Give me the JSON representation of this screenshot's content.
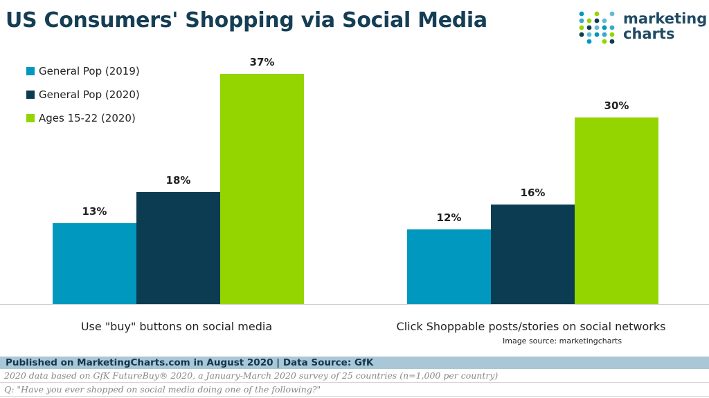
{
  "title": "US Consumers' Shopping via Social Media",
  "logo": {
    "line1": "marketing",
    "line2": "charts"
  },
  "colors": {
    "gp2019": "#0098be",
    "gp2020": "#0b3c52",
    "youth2020": "#94d500"
  },
  "legend": [
    {
      "label": "General Pop (2019)",
      "color": "#0098be"
    },
    {
      "label": "General Pop (2020)",
      "color": "#0b3c52"
    },
    {
      "label": "Ages 15-22 (2020)",
      "color": "#94d500"
    }
  ],
  "chart_data": {
    "type": "bar",
    "title": "US Consumers' Shopping via Social Media",
    "categories": [
      "Use \"buy\" buttons on social media",
      "Click Shoppable posts/stories on social networks"
    ],
    "series": [
      {
        "name": "General Pop (2019)",
        "values": [
          13,
          12
        ],
        "labels": [
          "13%",
          "12%"
        ]
      },
      {
        "name": "General Pop (2020)",
        "values": [
          18,
          16
        ],
        "labels": [
          "18%",
          "16%"
        ]
      },
      {
        "name": "Ages 15-22 (2020)",
        "values": [
          37,
          30
        ],
        "labels": [
          "37%",
          "30%"
        ]
      }
    ],
    "value_unit": "%",
    "legend_position": "top-left",
    "grid": false
  },
  "image_source": "Image source: marketingcharts",
  "footer": {
    "published": "Published on MarketingCharts.com in August 2020 | Data Source: GfK",
    "note1": "2020 data based on GfK FutureBuy® 2020, a January-March 2020 survey of 25 countries (n=1,000 per country)",
    "note2": "Q: \"Have you ever shopped on social media doing one of the following?\""
  }
}
